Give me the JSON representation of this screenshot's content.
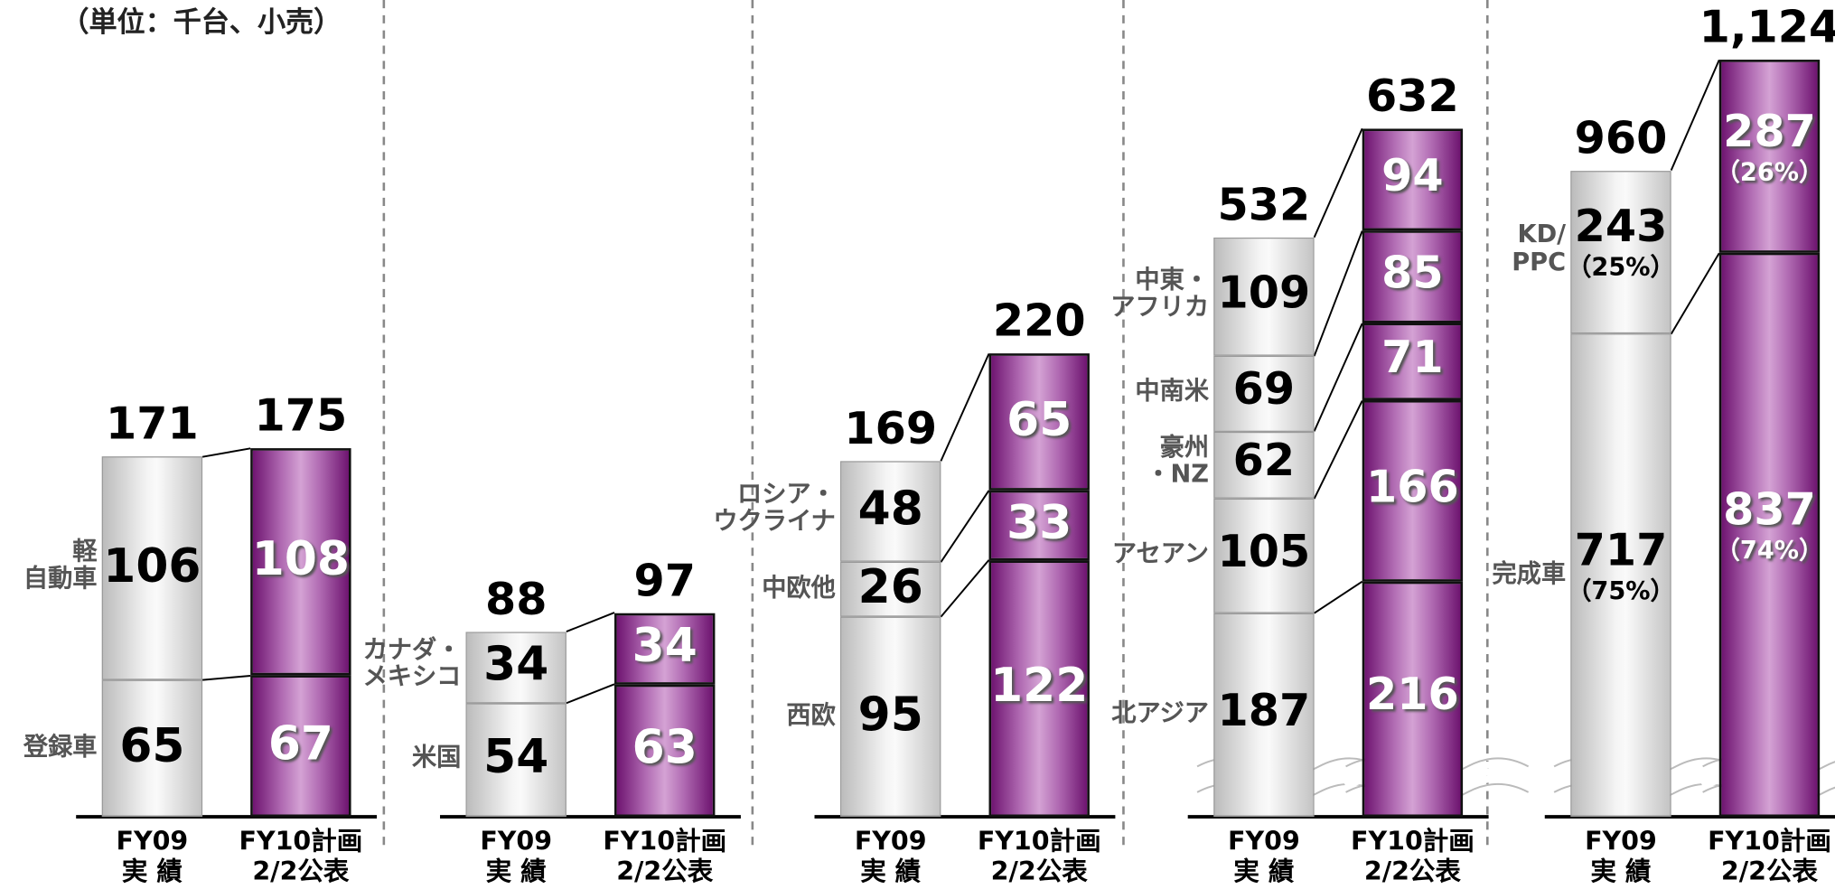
{
  "unit_label": "（単位：千台、小売）",
  "chart_data": [
    {
      "type": "stacked_bar",
      "categories": [
        [
          "FY09",
          "実 績"
        ],
        [
          "FY10計画",
          "2/2公表"
        ]
      ],
      "ylim": [
        0,
        388
      ],
      "totals": [
        171,
        175
      ],
      "series": [
        {
          "name": "登録車",
          "values": [
            65,
            67
          ]
        },
        {
          "name": "軽\n自動車",
          "values": [
            106,
            108
          ]
        }
      ]
    },
    {
      "type": "stacked_bar",
      "categories": [
        [
          "FY09",
          "実 績"
        ],
        [
          "FY10計画",
          "2/2公表"
        ]
      ],
      "ylim": [
        0,
        388
      ],
      "totals": [
        88,
        97
      ],
      "series": [
        {
          "name": "米国",
          "values": [
            54,
            63
          ]
        },
        {
          "name": "カナダ・\nメキシコ",
          "values": [
            34,
            34
          ]
        }
      ]
    },
    {
      "type": "stacked_bar",
      "categories": [
        [
          "FY09",
          "実 績"
        ],
        [
          "FY10計画",
          "2/2公表"
        ]
      ],
      "ylim": [
        0,
        388
      ],
      "totals": [
        169,
        220
      ],
      "series": [
        {
          "name": "西欧",
          "values": [
            95,
            122
          ]
        },
        {
          "name": "中欧他",
          "values": [
            26,
            33
          ]
        },
        {
          "name": "ロシア・\nウクライナ",
          "values": [
            48,
            65
          ]
        }
      ]
    },
    {
      "type": "stacked_bar",
      "categories": [
        [
          "FY09",
          "実 績"
        ],
        [
          "FY10計画",
          "2/2公表"
        ]
      ],
      "ylim": [
        0,
        750
      ],
      "axis_break": true,
      "totals": [
        532,
        632
      ],
      "series": [
        {
          "name": "北アジア",
          "values": [
            187,
            216
          ]
        },
        {
          "name": "アセアン",
          "values": [
            105,
            166
          ]
        },
        {
          "name": "豪州\n・NZ",
          "values": [
            62,
            71
          ]
        },
        {
          "name": "中南米",
          "values": [
            69,
            85
          ]
        },
        {
          "name": "中東・\nアフリカ",
          "values": [
            109,
            94
          ]
        }
      ]
    },
    {
      "type": "stacked_bar",
      "categories": [
        [
          "FY09",
          "実 績"
        ],
        [
          "FY10計画",
          "2/2公表"
        ]
      ],
      "ylim": [
        0,
        1213
      ],
      "axis_break": true,
      "totals": [
        960,
        1124
      ],
      "total_labels": [
        "960",
        "1,124"
      ],
      "series": [
        {
          "name": "完成車",
          "values": [
            717,
            837
          ],
          "percent_labels": [
            "（75%）",
            "（74%）"
          ]
        },
        {
          "name": "KD/\nPPC",
          "values": [
            243,
            287
          ],
          "percent_labels": [
            "（25%）",
            "（26%）"
          ]
        }
      ]
    }
  ]
}
